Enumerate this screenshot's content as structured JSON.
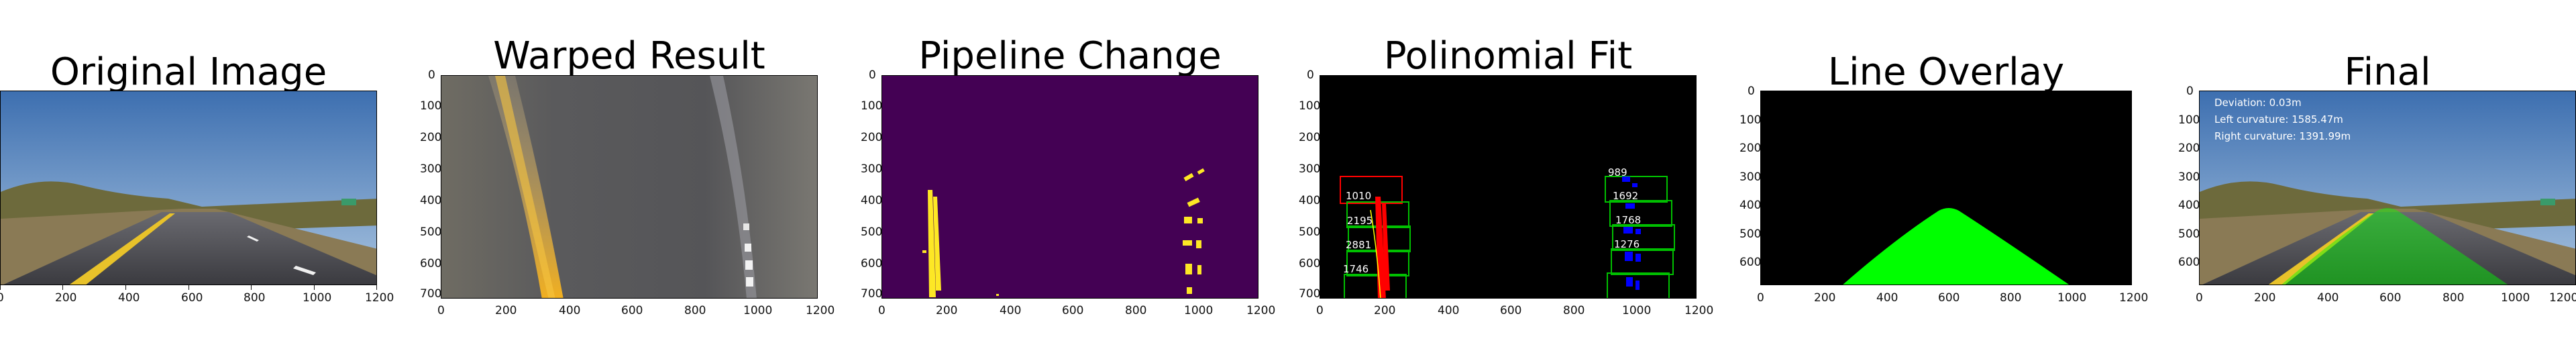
{
  "panels": [
    {
      "title": "Original Image",
      "xticks": [
        "0",
        "200",
        "400",
        "600",
        "800",
        "1000",
        "1200"
      ],
      "yticks": []
    },
    {
      "title": "Warped Result",
      "xticks": [
        "0",
        "200",
        "400",
        "600",
        "800",
        "1000",
        "1200"
      ],
      "yticks": [
        "0",
        "100",
        "200",
        "300",
        "400",
        "500",
        "600",
        "700"
      ]
    },
    {
      "title": "Pipeline Change",
      "xticks": [
        "0",
        "200",
        "400",
        "600",
        "800",
        "1000",
        "1200"
      ],
      "yticks": [
        "0",
        "100",
        "200",
        "300",
        "400",
        "500",
        "600",
        "700"
      ]
    },
    {
      "title": "Polinomial Fit",
      "xticks": [
        "0",
        "200",
        "400",
        "600",
        "800",
        "1000",
        "1200"
      ],
      "yticks": [
        "0",
        "100",
        "200",
        "300",
        "400",
        "500",
        "600",
        "700"
      ],
      "window_labels_left": [
        "1010",
        "2195",
        "2881",
        "1746"
      ],
      "window_labels_right": [
        "989",
        "1692",
        "1768",
        "1276"
      ]
    },
    {
      "title": "Line Overlay",
      "xticks": [
        "0",
        "200",
        "400",
        "600",
        "800",
        "1000",
        "1200"
      ],
      "yticks": [
        "0",
        "100",
        "200",
        "300",
        "400",
        "500",
        "600"
      ]
    },
    {
      "title": "Final",
      "xticks": [
        "0",
        "200",
        "400",
        "600",
        "800",
        "1000",
        "1200"
      ],
      "yticks": [
        "0",
        "100",
        "200",
        "300",
        "400",
        "500",
        "600"
      ],
      "overlay_text": [
        "Deviation: 0.03m",
        "Left curvature: 1585.47m",
        "Right curvature: 1391.99m"
      ]
    }
  ],
  "colors": {
    "lane_green": "#00ff00",
    "binary_bg": "#440154",
    "binary_fg": "#fde725",
    "window_green": "#00c000",
    "window_red": "#ff0000",
    "pixel_blue": "#0000ff"
  }
}
